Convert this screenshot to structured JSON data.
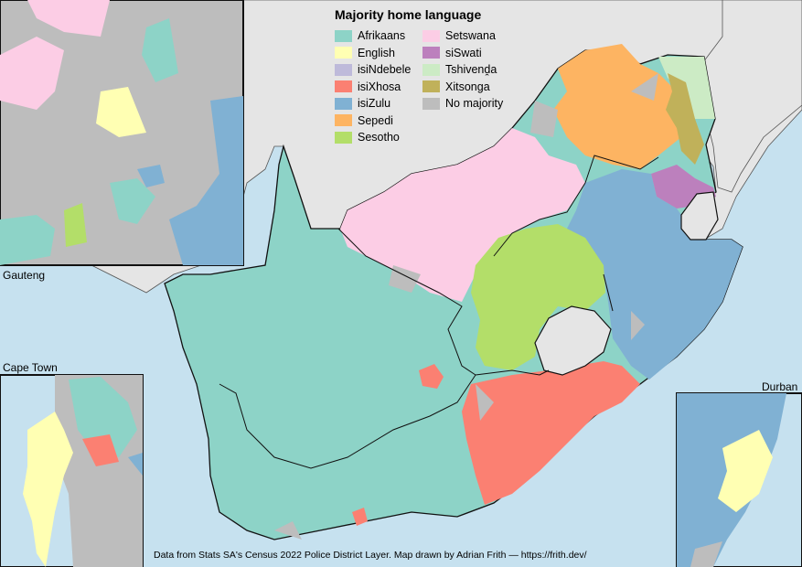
{
  "legend": {
    "title": "Majority home language",
    "items": [
      {
        "label": "Afrikaans",
        "color": "#8dd3c7"
      },
      {
        "label": "English",
        "color": "#ffffb3"
      },
      {
        "label": "isiNdebele",
        "color": "#bebada"
      },
      {
        "label": "isiXhosa",
        "color": "#fb8072"
      },
      {
        "label": "isiZulu",
        "color": "#80b1d3"
      },
      {
        "label": "Sepedi",
        "color": "#fdb462"
      },
      {
        "label": "Sesotho",
        "color": "#b3de69"
      },
      {
        "label": "Setswana",
        "color": "#fccde5"
      },
      {
        "label": "siSwati",
        "color": "#bc80bd"
      },
      {
        "label": "Tshivenḓa",
        "color": "#ccebc5"
      },
      {
        "label": "Xitsonga",
        "color": "#c0b15a"
      },
      {
        "label": "No majority",
        "color": "#bdbdbd"
      }
    ]
  },
  "insets": {
    "gauteng": "Gauteng",
    "cape_town": "Cape Town",
    "durban": "Durban"
  },
  "credit": "Data from Stats SA's Census 2022 Police District Layer.  Map drawn by Adrian Frith — https://frith.dev/",
  "colors": {
    "ocean": "#c6e1ef",
    "neighbour_land": "#e5e5e5",
    "no_majority": "#bdbdbd",
    "border": "#111111"
  }
}
